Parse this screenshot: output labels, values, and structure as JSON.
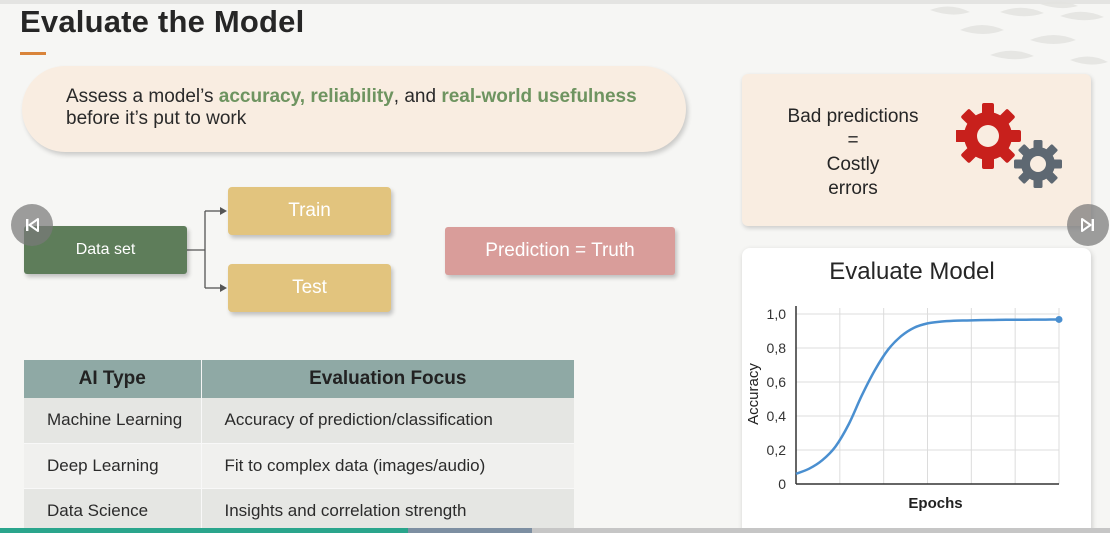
{
  "slide": {
    "title": "Evaluate the Model",
    "intro": {
      "before": "Assess a model’s ",
      "highlight1": "accuracy, reliability",
      "middle": ", and ",
      "highlight2": "real-world usefulness",
      "line2": "before it’s put to work"
    },
    "costly": {
      "line1": "Bad predictions",
      "line2": "=",
      "line3": "Costly",
      "line4": "errors"
    },
    "flow": {
      "dataset": "Data set",
      "train": "Train",
      "test": "Test",
      "prediction": "Prediction = Truth"
    },
    "table": {
      "headers": [
        "AI Type",
        "Evaluation Focus"
      ],
      "rows": [
        [
          "Machine Learning",
          "Accuracy of prediction/classification"
        ],
        [
          "Deep Learning",
          "Fit to complex data (images/audio)"
        ],
        [
          "Data Science",
          "Insights and correlation strength"
        ]
      ]
    }
  },
  "colors": {
    "accent_orange": "#d9843a",
    "highlight_green": "#6e9460",
    "dataset_green": "#5e7d5a",
    "train_test_gold": "#e2c47e",
    "prediction_pink": "#d99d9a",
    "table_header": "#8fa9a5",
    "curve_blue": "#4a8fd0",
    "gear_red": "#c8201c",
    "gear_gray": "#5e6872"
  },
  "icons": [
    "gear-icon",
    "skip-previous-icon",
    "skip-next-icon"
  ],
  "chart_data": {
    "type": "line",
    "title": "Evaluate Model",
    "xlabel": "Epochs",
    "ylabel": "Accuracy",
    "ylim": [
      0,
      1.0
    ],
    "yticks": [
      "0",
      "0,2",
      "0,4",
      "0,6",
      "0,8",
      "1,0"
    ],
    "x": [
      0,
      1,
      2,
      3,
      4,
      5,
      6,
      7,
      8,
      9,
      10,
      11,
      12,
      13,
      14,
      15,
      16,
      17,
      18,
      19,
      20
    ],
    "series": [
      {
        "values": [
          0.06,
          0.09,
          0.14,
          0.22,
          0.35,
          0.52,
          0.67,
          0.79,
          0.87,
          0.92,
          0.945,
          0.955,
          0.96,
          0.962,
          0.964,
          0.965,
          0.966,
          0.966,
          0.967,
          0.967,
          0.968
        ]
      }
    ],
    "grid": true,
    "endpoint_marker": true
  }
}
